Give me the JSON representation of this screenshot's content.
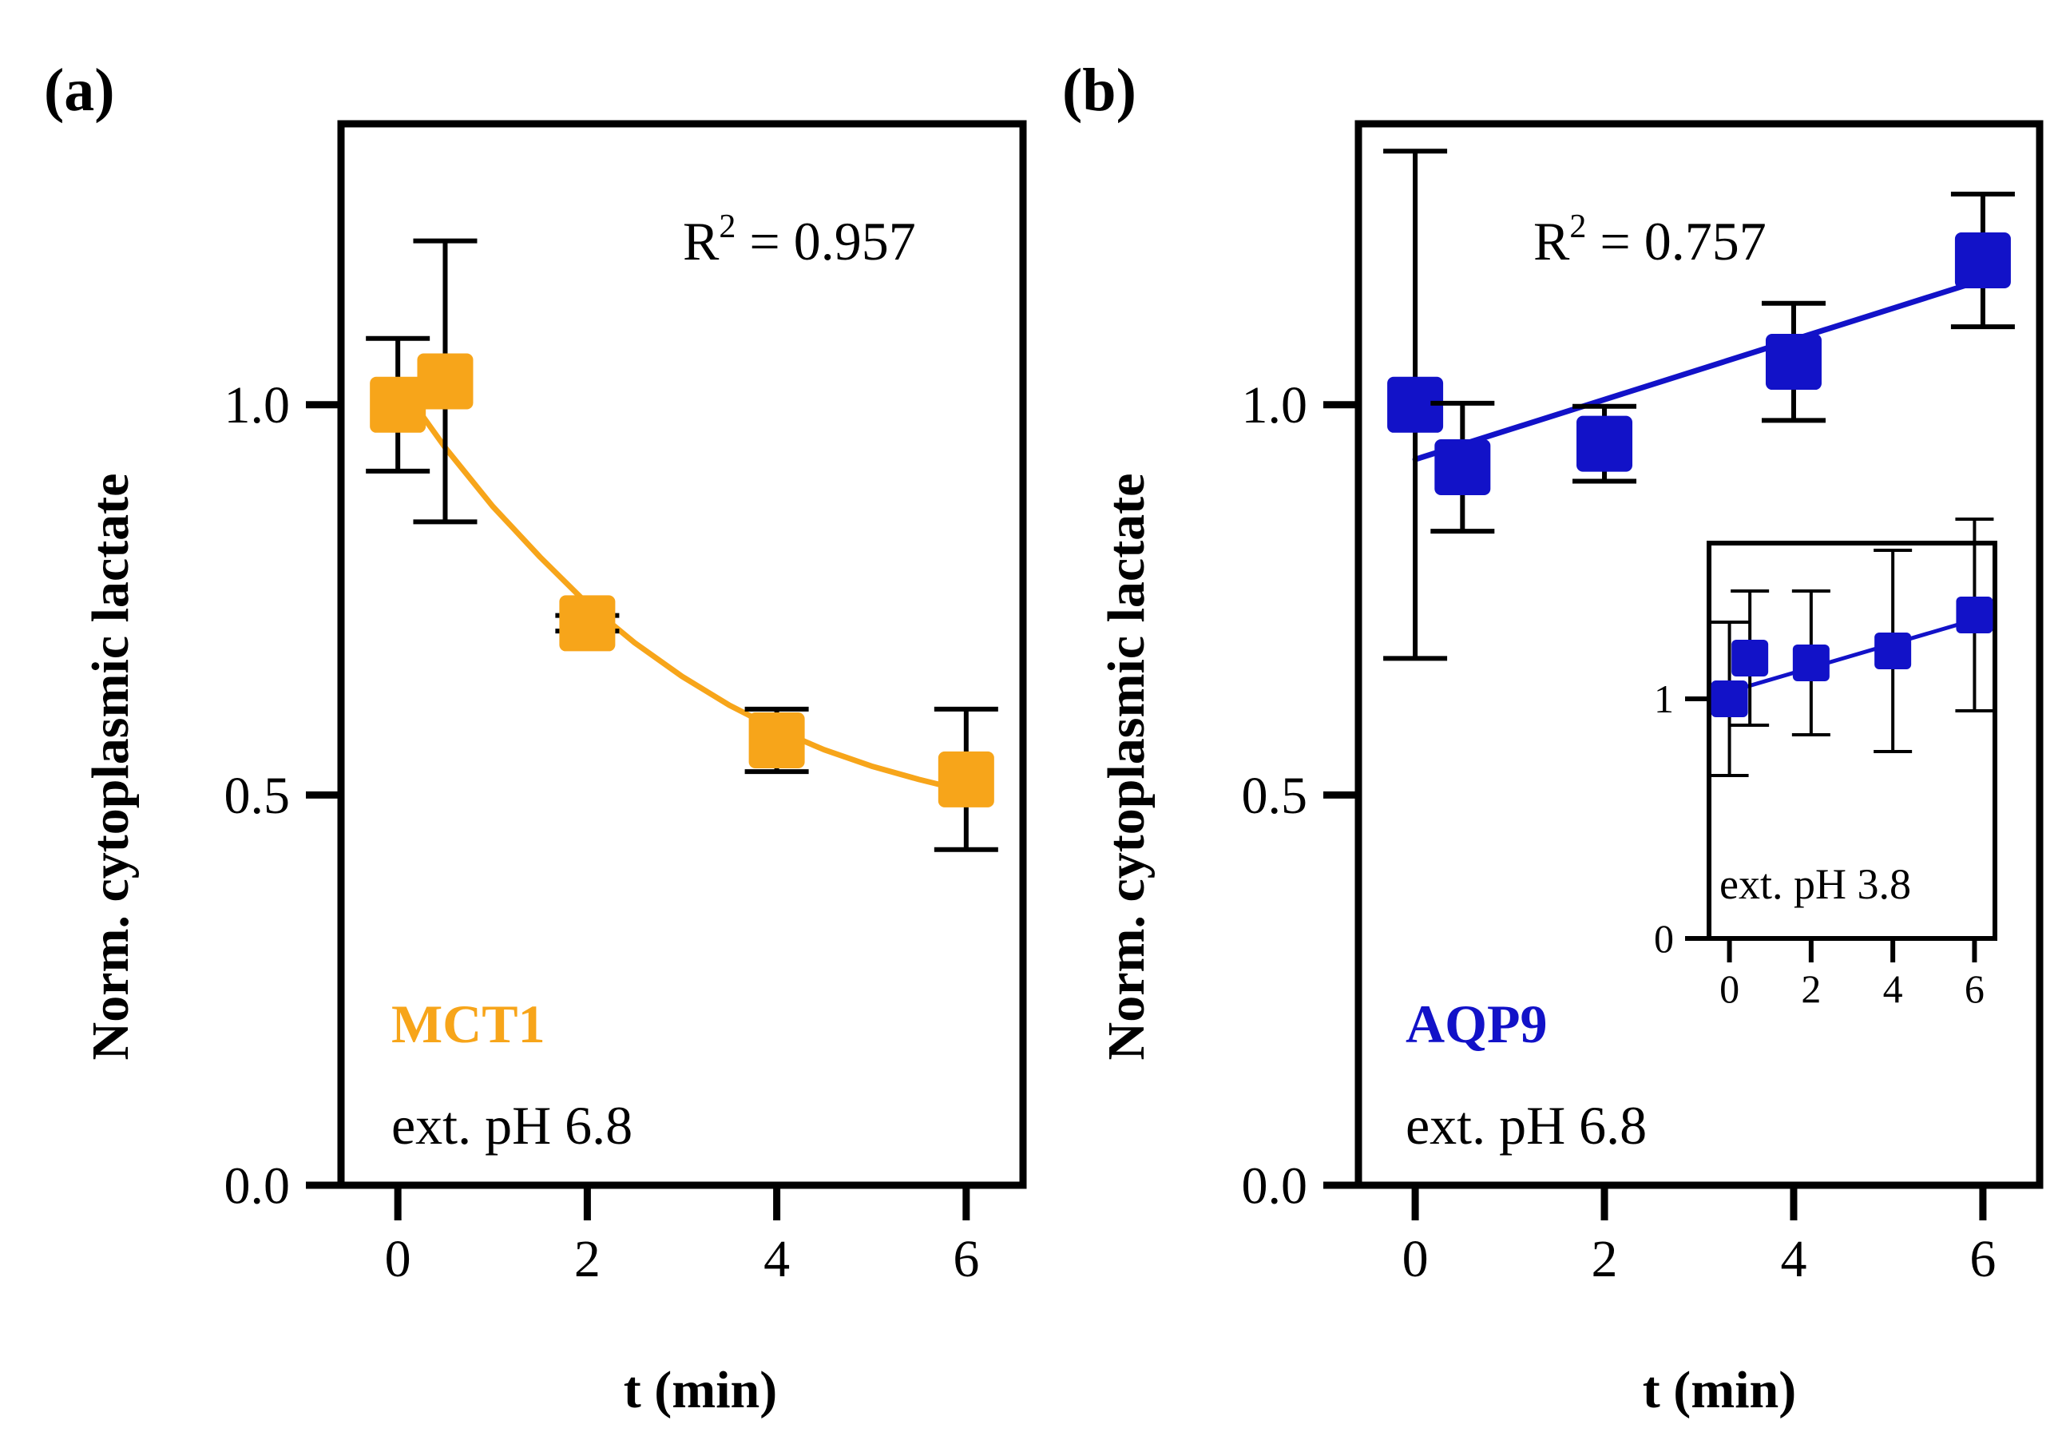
{
  "panels": [
    {
      "label": "(a)",
      "series_label": "MCT1",
      "condition": "ext. pH 6.8",
      "r2_prefix": "R",
      "r2_sup": "2",
      "r2_value": " = 0.957",
      "color": "#f7a51a",
      "xlabel": "t (min)",
      "ylabel": "Norm. cytoplasmic lactate"
    },
    {
      "label": "(b)",
      "series_label": "AQP9",
      "condition": "ext. pH 6.8",
      "r2_prefix": "R",
      "r2_sup": "2",
      "r2_value": " = 0.757",
      "color": "#1212c8",
      "xlabel": "t (min)",
      "ylabel": "Norm. cytoplasmic lactate",
      "inset_condition": "ext. pH 3.8"
    }
  ],
  "chart_data": [
    {
      "type": "scatter",
      "title": "(a) MCT1, ext. pH 6.8",
      "xlabel": "t (min)",
      "ylabel": "Norm. cytoplasmic lactate",
      "xlim": [
        -0.6,
        6.6
      ],
      "ylim": [
        0.0,
        1.36
      ],
      "xticks": [
        0,
        2,
        4,
        6
      ],
      "xtick_labels": [
        "0",
        "2",
        "4",
        "6"
      ],
      "yticks": [
        0.0,
        0.5,
        1.0
      ],
      "ytick_labels": [
        "0.0",
        "0.5",
        "1.0"
      ],
      "series": [
        {
          "name": "MCT1",
          "x": [
            0,
            0.5,
            2,
            4,
            6
          ],
          "y": [
            1.0,
            1.03,
            0.72,
            0.57,
            0.52
          ],
          "err": [
            0.085,
            0.18,
            0.01,
            0.04,
            0.09
          ]
        }
      ],
      "fit": {
        "type": "exponential",
        "x": [
          0,
          0.5,
          1,
          1.5,
          2,
          2.5,
          3,
          3.5,
          4,
          4.5,
          5,
          5.5,
          6
        ],
        "y": [
          1.03,
          0.945,
          0.87,
          0.805,
          0.745,
          0.695,
          0.652,
          0.615,
          0.584,
          0.558,
          0.537,
          0.52,
          0.505
        ]
      },
      "r2": 0.957,
      "grid": false
    },
    {
      "type": "scatter",
      "title": "(b) AQP9, ext. pH 6.8",
      "xlabel": "t (min)",
      "ylabel": "Norm. cytoplasmic lactate",
      "xlim": [
        -0.6,
        6.6
      ],
      "ylim": [
        0.0,
        1.36
      ],
      "xticks": [
        0,
        2,
        4,
        6
      ],
      "xtick_labels": [
        "0",
        "2",
        "4",
        "6"
      ],
      "yticks": [
        0.0,
        0.5,
        1.0
      ],
      "ytick_labels": [
        "0.0",
        "0.5",
        "1.0"
      ],
      "series": [
        {
          "name": "AQP9",
          "x": [
            0,
            0.5,
            2,
            4,
            6
          ],
          "y": [
            1.0,
            0.92,
            0.95,
            1.055,
            1.185
          ],
          "err": [
            0.325,
            0.082,
            0.048,
            0.075,
            0.085
          ]
        }
      ],
      "fit": {
        "type": "linear",
        "x": [
          0,
          6
        ],
        "y": [
          0.93,
          1.16
        ]
      },
      "r2": 0.757,
      "grid": false
    },
    {
      "type": "scatter",
      "title": "inset: AQP9, ext. pH 3.8",
      "xlabel": "",
      "ylabel": "",
      "xlim": [
        -0.5,
        6.5
      ],
      "ylim": [
        0,
        1.65
      ],
      "xticks": [
        0,
        2,
        4,
        6
      ],
      "xtick_labels": [
        "0",
        "2",
        "4",
        "6"
      ],
      "yticks": [
        0,
        1
      ],
      "ytick_labels": [
        "0",
        "1"
      ],
      "series": [
        {
          "name": "AQP9",
          "x": [
            0,
            0.5,
            2,
            4,
            6
          ],
          "y": [
            1.0,
            1.17,
            1.15,
            1.2,
            1.35
          ],
          "err": [
            0.32,
            0.28,
            0.3,
            0.42,
            0.4
          ]
        }
      ],
      "fit": {
        "type": "linear",
        "x": [
          0,
          6
        ],
        "y": [
          1.03,
          1.33
        ]
      },
      "grid": false
    }
  ]
}
